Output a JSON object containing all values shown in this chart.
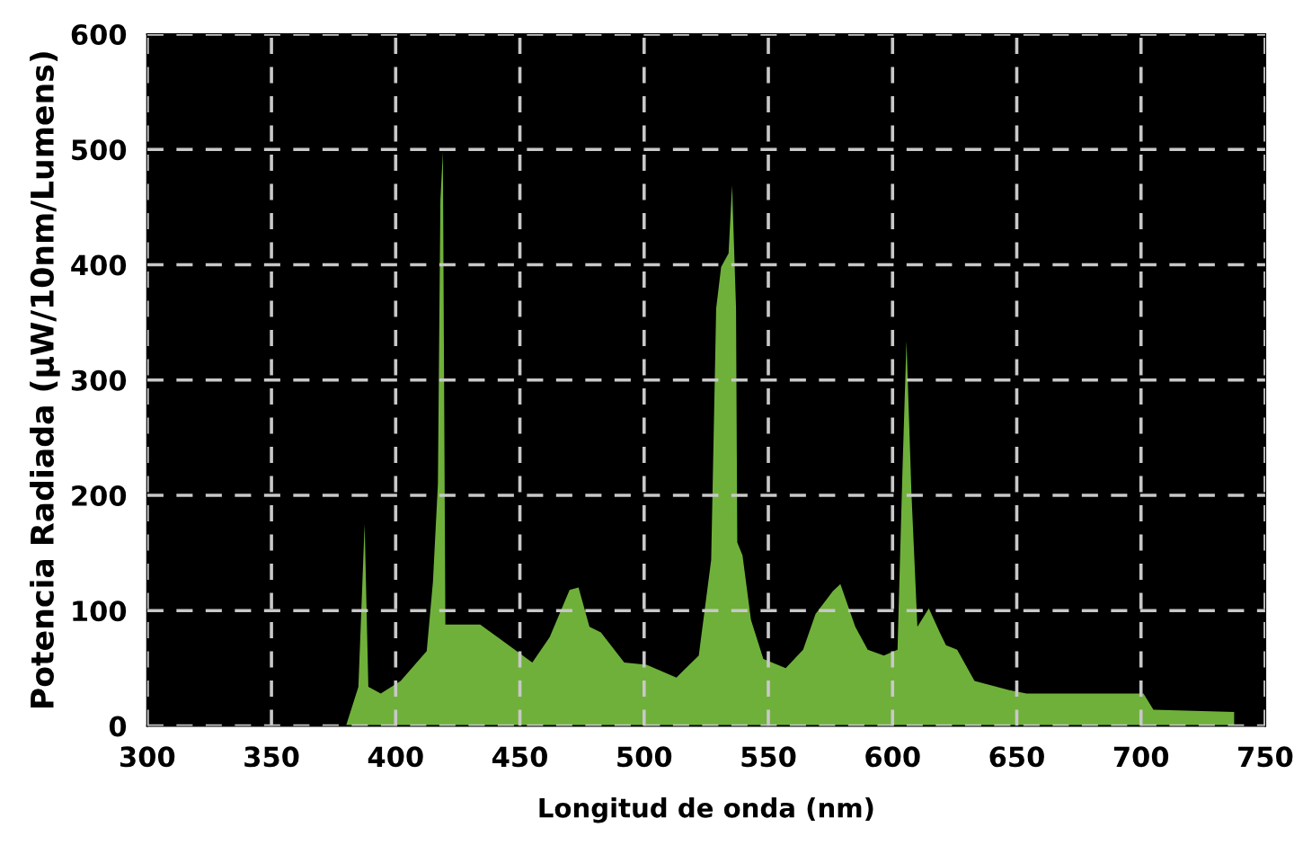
{
  "chart_data": {
    "type": "area",
    "xlabel": "Longitud de onda (nm)",
    "ylabel": "Potencia Radiada (µW/10nm/Lumens)",
    "xlim": [
      300,
      750
    ],
    "ylim": [
      0,
      600
    ],
    "xticks": [
      300,
      350,
      400,
      450,
      500,
      550,
      600,
      650,
      700,
      750
    ],
    "yticks": [
      0,
      100,
      200,
      300,
      400,
      500,
      600
    ],
    "grid": true,
    "series": [
      {
        "color": "#6fb03a",
        "x": [
          380,
          385,
          387.5,
          389,
          394,
          402,
          412.5,
          415,
          417,
          418,
          419,
          420,
          423,
          434,
          441,
          455,
          462,
          470,
          473.6,
          478,
          482.6,
          492,
          501,
          513,
          522,
          527,
          529,
          531,
          534,
          535.4,
          537,
          537.5,
          539.6,
          543,
          548,
          557,
          564,
          569,
          576,
          579,
          585,
          590,
          596.5,
          602,
          604,
          605.6,
          607.6,
          610,
          614.6,
          619,
          621.5,
          626,
          633,
          647,
          654,
          701,
          705,
          737.5
        ],
        "values": [
          0,
          34,
          175,
          34,
          28,
          39,
          65,
          125,
          210,
          456,
          498,
          88,
          88,
          88,
          77,
          55,
          77,
          118,
          120,
          86,
          81,
          55,
          53,
          42,
          61,
          144,
          362,
          398,
          410,
          469,
          362,
          159,
          148,
          92,
          58,
          50,
          66,
          97,
          117,
          123,
          86,
          66,
          61,
          66,
          222,
          334,
          202,
          86,
          102,
          81,
          70,
          66,
          39,
          31,
          28,
          28,
          14,
          12
        ]
      }
    ]
  }
}
